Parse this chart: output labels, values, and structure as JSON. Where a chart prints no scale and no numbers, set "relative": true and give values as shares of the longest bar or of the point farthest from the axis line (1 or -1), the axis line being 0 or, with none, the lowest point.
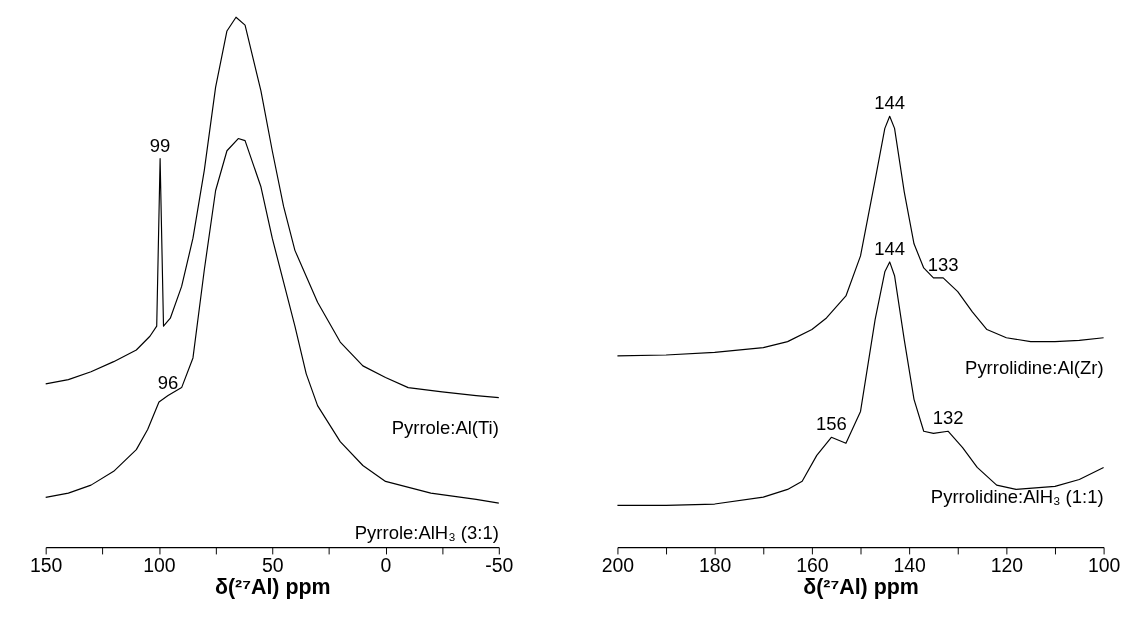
{
  "chart_data": [
    {
      "type": "line",
      "relative": true,
      "xlabel": "δ(²⁷Al) ppm",
      "xlim": [
        150,
        -50
      ],
      "xticks": [
        150,
        {
          "value": 125,
          "label": null
        },
        100,
        {
          "value": 75,
          "label": null
        },
        50,
        {
          "value": 25,
          "label": null
        },
        0,
        {
          "value": -25,
          "label": null
        },
        -50
      ],
      "series": [
        {
          "name": "Pyrrole:Al(Ti)",
          "color": "#000000",
          "x": [
            150,
            140,
            130,
            120,
            110,
            104,
            101,
            99.5,
            98,
            95,
            90,
            85,
            80,
            75,
            70,
            66,
            62,
            55,
            50,
            45,
            40,
            30,
            20,
            10,
            0,
            -10,
            -25,
            -40,
            -50
          ],
          "values": [
            0.308,
            0.316,
            0.331,
            0.35,
            0.372,
            0.398,
            0.417,
            0.733,
            0.417,
            0.432,
            0.492,
            0.583,
            0.711,
            0.868,
            0.974,
            1.0,
            0.985,
            0.861,
            0.748,
            0.643,
            0.56,
            0.462,
            0.387,
            0.342,
            0.32,
            0.301,
            0.293,
            0.286,
            0.282
          ]
        },
        {
          "name": "Pyrrole:AlH₃ (3:1)",
          "color": "#000000",
          "x": [
            150,
            140,
            130,
            120,
            110,
            105,
            100,
            96,
            90,
            85,
            80,
            75,
            70,
            65,
            62,
            55,
            50,
            45,
            40,
            35,
            30,
            20,
            10,
            0,
            -20,
            -40,
            -50
          ],
          "values": [
            0.094,
            0.102,
            0.117,
            0.143,
            0.184,
            0.222,
            0.274,
            0.286,
            0.301,
            0.357,
            0.523,
            0.673,
            0.748,
            0.771,
            0.767,
            0.68,
            0.583,
            0.5,
            0.417,
            0.327,
            0.267,
            0.199,
            0.154,
            0.124,
            0.102,
            0.09,
            0.083
          ]
        }
      ],
      "annotations": [
        {
          "text": "99",
          "x": 99.5,
          "y": 0.733
        },
        {
          "text": "96",
          "x": 96,
          "y": 0.286
        }
      ],
      "marker": "none",
      "line_style": "solid",
      "grid": false
    },
    {
      "type": "line",
      "relative": true,
      "xlabel": "δ(²⁷Al) ppm",
      "xlim": [
        200,
        100
      ],
      "xticks": [
        200,
        {
          "value": 190,
          "label": null
        },
        180,
        {
          "value": 170,
          "label": null
        },
        160,
        {
          "value": 150,
          "label": null
        },
        140,
        {
          "value": 130,
          "label": null
        },
        120,
        {
          "value": 110,
          "label": null
        },
        100
      ],
      "series": [
        {
          "name": "Pyrrolidine:Al(Zr)",
          "color": "#000000",
          "x": [
            200,
            190,
            180,
            170,
            165,
            160,
            157,
            153,
            150,
            147,
            145,
            144,
            143,
            141,
            139,
            137,
            135,
            133,
            130,
            127,
            124,
            120,
            115,
            110,
            105,
            100
          ],
          "values": [
            0.444,
            0.446,
            0.452,
            0.463,
            0.477,
            0.505,
            0.532,
            0.583,
            0.676,
            0.852,
            0.972,
            1.0,
            0.972,
            0.824,
            0.704,
            0.648,
            0.625,
            0.625,
            0.593,
            0.546,
            0.505,
            0.486,
            0.477,
            0.477,
            0.48,
            0.486
          ]
        },
        {
          "name": "Pyrrolidine:AlH₃ (1:1)",
          "color": "#000000",
          "x": [
            200,
            190,
            180,
            170,
            165,
            162,
            159,
            156,
            153,
            150,
            147,
            145,
            144,
            143,
            141,
            139,
            137,
            135,
            132,
            129,
            126,
            122,
            118,
            110,
            105,
            100
          ],
          "values": [
            0.097,
            0.097,
            0.1,
            0.116,
            0.134,
            0.153,
            0.213,
            0.255,
            0.241,
            0.315,
            0.528,
            0.639,
            0.662,
            0.63,
            0.481,
            0.343,
            0.269,
            0.264,
            0.269,
            0.231,
            0.185,
            0.144,
            0.134,
            0.141,
            0.157,
            0.185
          ]
        }
      ],
      "annotations": [
        {
          "text": "144",
          "x": 144,
          "y": 1.0
        },
        {
          "text": "144",
          "x": 144,
          "y": 0.662
        },
        {
          "text": "133",
          "x": 133,
          "y": 0.625
        },
        {
          "text": "156",
          "x": 156,
          "y": 0.255
        },
        {
          "text": "132",
          "x": 132,
          "y": 0.269
        }
      ],
      "marker": "none",
      "line_style": "solid",
      "grid": false
    }
  ]
}
